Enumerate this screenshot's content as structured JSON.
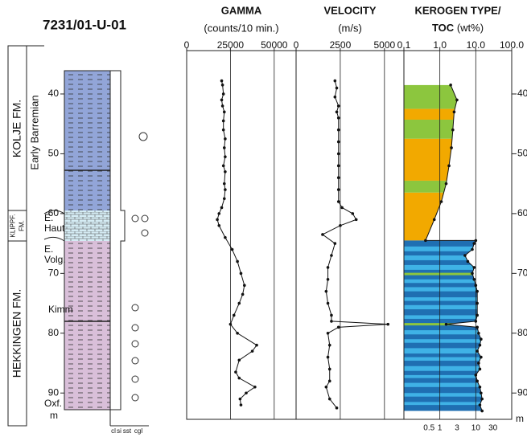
{
  "title": "7231/01-U-01",
  "depth_axis": {
    "ylim": [
      32.75,
      94.4
    ],
    "yticks": [
      40,
      50,
      60,
      70,
      80,
      90
    ],
    "unit": "m"
  },
  "lithology": {
    "formations": [
      {
        "lines": [
          "KOLJE FM."
        ]
      },
      {
        "lines": [
          "KLIPPF.",
          "FM."
        ]
      },
      {
        "lines": [
          "HEKKINGEN FM."
        ]
      }
    ],
    "stages": [
      {
        "lines": [
          "Early Barremian"
        ]
      },
      {
        "lines": [
          "E.",
          "Haut"
        ]
      },
      {
        "lines": [
          "E.",
          "Volg."
        ]
      },
      {
        "lines": [
          "Kimm"
        ]
      },
      {
        "lines": [
          "Oxf."
        ]
      }
    ],
    "grain_scale": [
      "cl",
      "si",
      "sst",
      "cgl"
    ]
  },
  "chart_data": [
    {
      "type": "line",
      "title": "GAMMA",
      "subtitle": "(counts/10 min.)",
      "color": "#111",
      "grid": true,
      "xlim": [
        0,
        62500
      ],
      "xticks": [
        0,
        25000,
        50000
      ],
      "depth": [
        37.8,
        38.5,
        40,
        41,
        42,
        43,
        44.5,
        46,
        47.5,
        49,
        50.5,
        52,
        53,
        55,
        56,
        57.5,
        59,
        60,
        61,
        62,
        64,
        66,
        68,
        70,
        72,
        73.5,
        75,
        77,
        78.5,
        80,
        82,
        83,
        84.5,
        86.5,
        87.5,
        89,
        90,
        91,
        92
      ],
      "values": [
        20000,
        20500,
        21000,
        20000,
        20500,
        21500,
        21000,
        21000,
        22000,
        21500,
        22000,
        21000,
        22000,
        21500,
        22000,
        21500,
        20000,
        18500,
        17500,
        18500,
        22000,
        26000,
        29000,
        31000,
        33000,
        32000,
        30000,
        27000,
        25000,
        29000,
        40000,
        37500,
        30000,
        28000,
        30000,
        39000,
        34000,
        30500,
        31000
      ]
    },
    {
      "type": "line",
      "title": "VELOCITY",
      "subtitle": "(m/s)",
      "color": "#111",
      "grid": true,
      "xlim": [
        0,
        6100
      ],
      "xticks": [
        0,
        2500,
        5000
      ],
      "depth": [
        37.8,
        39,
        40.5,
        42,
        43,
        44,
        46,
        48,
        50,
        52,
        54,
        56,
        58,
        59,
        60,
        61,
        62,
        63.5,
        65,
        67,
        69,
        71,
        73,
        75,
        77,
        78,
        78.5,
        79,
        80,
        82,
        84,
        86,
        88,
        89,
        91,
        92.5
      ],
      "values": [
        2200,
        2300,
        2200,
        2400,
        2300,
        2400,
        2400,
        2400,
        2400,
        2400,
        2400,
        2400,
        2400,
        2600,
        3200,
        3400,
        2500,
        1500,
        2200,
        2000,
        1800,
        1800,
        1700,
        1800,
        2000,
        2000,
        5200,
        2400,
        1800,
        1900,
        1800,
        1900,
        1900,
        1700,
        1900,
        2300
      ]
    },
    {
      "type": "toc",
      "title": "KEROGEN TYPE/",
      "title2": "TOC",
      "subtitle": "(wt%)",
      "color": "#111",
      "grid": true,
      "log_scale": true,
      "xlim": [
        0.1,
        100
      ],
      "xticks": [
        {
          "value": 0.1,
          "label": "0.1"
        },
        {
          "value": 1,
          "label": "1.0"
        },
        {
          "value": 10,
          "label": "10.0"
        },
        {
          "value": 100,
          "label": "100.0"
        }
      ],
      "bottom_xticks": [
        0.5,
        1,
        3,
        10,
        30
      ],
      "depth": [
        38.5,
        41,
        43,
        46,
        49,
        52,
        55,
        58,
        61,
        64.5,
        64.5,
        65,
        66,
        67,
        68,
        69,
        70,
        71,
        72,
        73,
        75,
        77,
        78,
        78.5,
        79,
        80,
        81,
        82,
        83,
        84,
        85,
        86,
        87,
        88,
        89,
        90,
        91,
        92,
        93
      ],
      "values": [
        2,
        3,
        2.5,
        2.3,
        2.1,
        1.8,
        1.5,
        1.1,
        0.7,
        0.4,
        10,
        9,
        8,
        5,
        6,
        9,
        8,
        9,
        10,
        11,
        11,
        11,
        10,
        1.5,
        11,
        12,
        14,
        13,
        11,
        14,
        12,
        13,
        10,
        11,
        13,
        14,
        15,
        13,
        15
      ],
      "bands": [
        {
          "from": 38.5,
          "to": 42.5,
          "color": "#8cc63e"
        },
        {
          "from": 42.5,
          "to": 44.3,
          "color": "#f2a900"
        },
        {
          "from": 44.3,
          "to": 47.5,
          "color": "#8cc63e"
        },
        {
          "from": 47.5,
          "to": 54.5,
          "color": "#f2a900"
        },
        {
          "from": 54.5,
          "to": 56.5,
          "color": "#8cc63e"
        },
        {
          "from": 56.5,
          "to": 64.5,
          "color": "#f2a900"
        },
        {
          "from": 64.5,
          "to": 93,
          "color": "#1f6fb2"
        },
        {
          "from": 65.5,
          "to": 66.3,
          "color": "#3fb2e6"
        },
        {
          "from": 67,
          "to": 67.8,
          "color": "#3fb2e6"
        },
        {
          "from": 68.6,
          "to": 69.4,
          "color": "#3fb2e6"
        },
        {
          "from": 69.9,
          "to": 70.3,
          "color": "#8cc63e"
        },
        {
          "from": 71,
          "to": 71.6,
          "color": "#3fb2e6"
        },
        {
          "from": 72.3,
          "to": 73,
          "color": "#3fb2e6"
        },
        {
          "from": 74,
          "to": 74.6,
          "color": "#3fb2e6"
        },
        {
          "from": 75.3,
          "to": 76,
          "color": "#3fb2e6"
        },
        {
          "from": 77,
          "to": 77.6,
          "color": "#3fb2e6"
        },
        {
          "from": 78.3,
          "to": 78.7,
          "color": "#8cc63e"
        },
        {
          "from": 79.5,
          "to": 80.2,
          "color": "#3fb2e6"
        },
        {
          "from": 81,
          "to": 81.6,
          "color": "#3fb2e6"
        },
        {
          "from": 82.5,
          "to": 83.4,
          "color": "#3fb2e6"
        },
        {
          "from": 84,
          "to": 84.6,
          "color": "#3fb2e6"
        },
        {
          "from": 85.5,
          "to": 86.3,
          "color": "#3fb2e6"
        },
        {
          "from": 87,
          "to": 87.5,
          "color": "#3fb2e6"
        },
        {
          "from": 88.3,
          "to": 89,
          "color": "#3fb2e6"
        },
        {
          "from": 90,
          "to": 90.6,
          "color": "#3fb2e6"
        },
        {
          "from": 91.5,
          "to": 92,
          "color": "#3fb2e6"
        }
      ]
    }
  ]
}
